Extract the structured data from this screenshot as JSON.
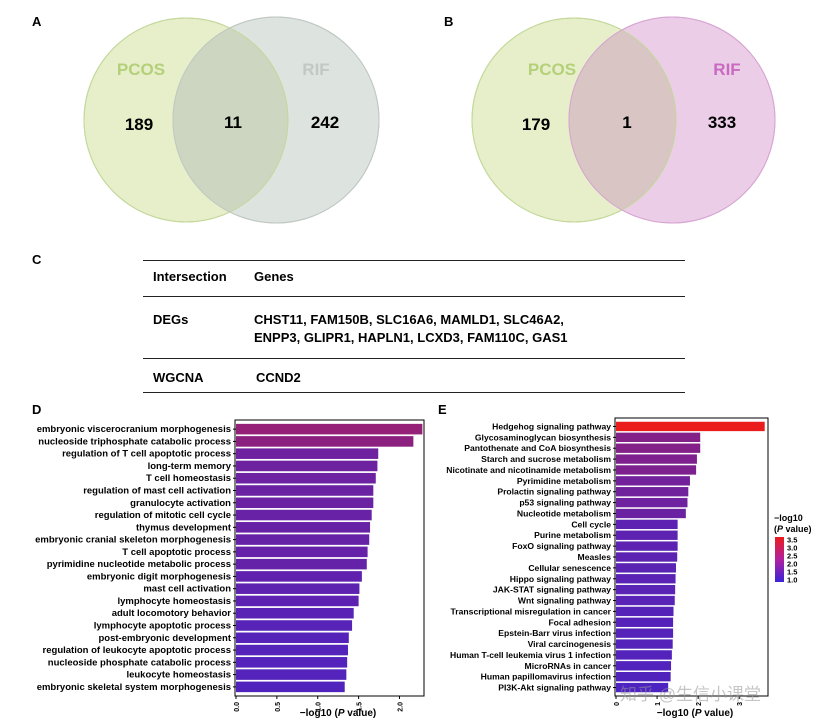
{
  "panels": {
    "A": "A",
    "B": "B",
    "C": "C",
    "D": "D",
    "E": "E"
  },
  "venn_a": {
    "left_label": "PCOS",
    "right_label": "RIF",
    "left_count": "189",
    "overlap_count": "11",
    "right_count": "242",
    "colors": {
      "left_fill": "#e6efc9",
      "right_fill": "#dde3df",
      "overlap_fill": "#cdd6c0",
      "left_text": "#b6d07a",
      "right_text": "#c2c8c4"
    }
  },
  "venn_b": {
    "left_label": "PCOS",
    "right_label": "RIF",
    "left_count": "179",
    "overlap_count": "1",
    "right_count": "333",
    "colors": {
      "left_fill": "#e6efc9",
      "right_fill": "#eccde8",
      "overlap_fill": "#d8c5c4",
      "left_text": "#b6d07a",
      "right_text": "#c86bc0"
    }
  },
  "table": {
    "header": {
      "col1": "Intersection",
      "col2": "Genes"
    },
    "rows": [
      {
        "label": "DEGs",
        "genes_line1": "CHST11, FAM150B, SLC16A6, MAMLD1, SLC46A2,",
        "genes_line2": "ENPP3, GLIPR1, HAPLN1, LCXD3, FAM110C, GAS1"
      },
      {
        "label": "WGCNA",
        "genes_line1": "CCND2"
      }
    ]
  },
  "chart_data": [
    {
      "type": "bar",
      "orientation": "horizontal",
      "panel": "D",
      "categories": [
        "embryonic viscerocranium morphogenesis",
        "nucleoside triphosphate catabolic process",
        "regulation of T cell apoptotic process",
        "long-term memory",
        "T cell homeostasis",
        "regulation of mast cell activation",
        "granulocyte activation",
        "regulation of mitotic cell cycle",
        "thymus development",
        "embryonic cranial skeleton morphogenesis",
        "T cell apoptotic process",
        "pyrimidine nucleotide metabolic process",
        "embryonic digit morphogenesis",
        "mast cell activation",
        "lymphocyte homeostasis",
        "adult locomotory behavior",
        "lymphocyte apoptotic process",
        "post-embryonic development",
        "regulation of leukocyte apoptotic process",
        "nucleoside phosphate catabolic process",
        "leukocyte homeostasis",
        "embryonic skeletal system morphogenesis"
      ],
      "values": [
        2.28,
        2.17,
        1.74,
        1.73,
        1.71,
        1.68,
        1.68,
        1.66,
        1.64,
        1.63,
        1.61,
        1.6,
        1.54,
        1.51,
        1.5,
        1.44,
        1.42,
        1.38,
        1.37,
        1.36,
        1.35,
        1.33
      ],
      "xlim": [
        0,
        2.3
      ],
      "xticks": [
        "0.0",
        "0.5",
        "1.0",
        "1.5",
        "2.0"
      ],
      "xlabel_prefix": "−log10 (",
      "xlabel_italic": "P",
      "xlabel_suffix": " value)",
      "color_scale": {
        "low": "#3a24d6",
        "high": "#ea1c1c",
        "vmin": 1.0,
        "vmax": 3.5
      }
    },
    {
      "type": "bar",
      "orientation": "horizontal",
      "panel": "E",
      "categories": [
        "Hedgehog signaling pathway",
        "Glycosaminoglycan biosynthesis",
        "Pantothenate and CoA biosynthesis",
        "Starch and sucrose metabolism",
        "Nicotinate and nicotinamide metabolism",
        "Pyrimidine metabolism",
        "Prolactin signaling pathway",
        "p53 signaling pathway",
        "Nucleotide metabolism",
        "Cell cycle",
        "Purine metabolism",
        "FoxO signaling pathway",
        "Measles",
        "Cellular senescence",
        "Hippo signaling pathway",
        "JAK-STAT signaling pathway",
        "Wnt signaling pathway",
        "Transcriptional misregulation in cancer",
        "Focal adhesion",
        "Epstein-Barr virus infection",
        "Viral carcinogenesis",
        "Human T-cell leukemia virus 1 infection",
        "MicroRNAs in cancer",
        "Human papillomavirus infection",
        "PI3K-Akt signaling pathway"
      ],
      "values": [
        3.62,
        2.05,
        2.05,
        1.97,
        1.95,
        1.8,
        1.76,
        1.74,
        1.7,
        1.5,
        1.5,
        1.5,
        1.49,
        1.46,
        1.45,
        1.44,
        1.43,
        1.4,
        1.39,
        1.39,
        1.38,
        1.36,
        1.34,
        1.33,
        1.27
      ],
      "xlim": [
        0,
        3.7
      ],
      "xticks": [
        "0",
        "1",
        "2",
        "3"
      ],
      "xlabel_prefix": "−log10 (",
      "xlabel_italic": "P",
      "xlabel_suffix": " value)",
      "color_scale": {
        "low": "#3a24d6",
        "high": "#ea1c1c",
        "vmin": 1.0,
        "vmax": 3.5
      },
      "legend": {
        "title_line1": "−log10",
        "title_line2_prefix": "(",
        "title_line2_italic": "P",
        "title_line2_suffix": " value)",
        "ticks": [
          "3.5",
          "3.0",
          "2.5",
          "2.0",
          "1.5",
          "1.0"
        ],
        "position": "right"
      }
    }
  ],
  "watermark": "知乎 @生信小课堂"
}
